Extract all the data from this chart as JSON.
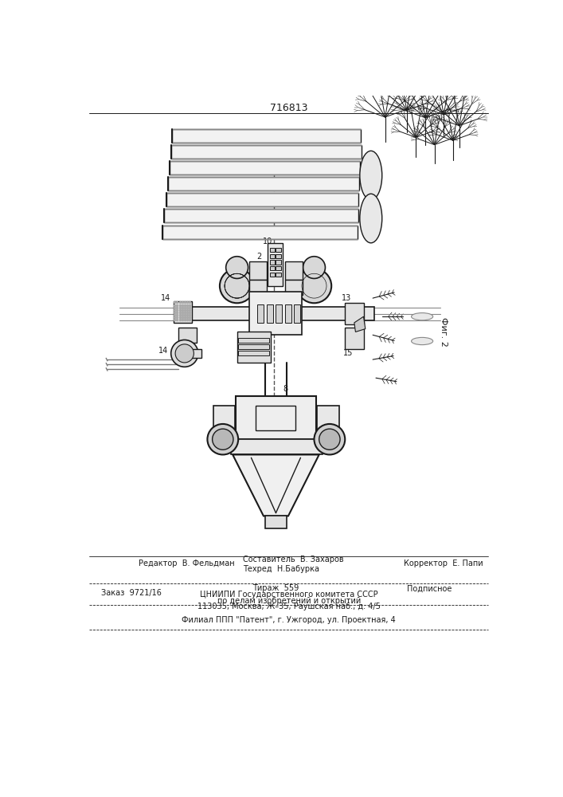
{
  "patent_number": "716813",
  "fig_label": "Фиг. 2",
  "bg_color": "#ffffff",
  "lc": "#1a1a1a",
  "footer": {
    "editor_label": "Редактор  В. Фельдман",
    "composer_label": "Составитель  В. Захаров",
    "techred_label": "Техред  Н.Бабурка",
    "corrector_label": "Корректор  Е. Папи",
    "order": "Заказ  9721/16",
    "tirazh": "Тираж  559",
    "podpisnoe": "Подписное",
    "cniipи1": "ЦНИИПИ Государственного комитета СССР",
    "cniipи2": "по делам изобретений и открытий",
    "cniipи3": "113035, Москва, Ж–35, Раушская наб., д. 4/5",
    "filial": "Филиал ППП \"Патент\", г. Ужгород, ул. Проектная, 4"
  }
}
